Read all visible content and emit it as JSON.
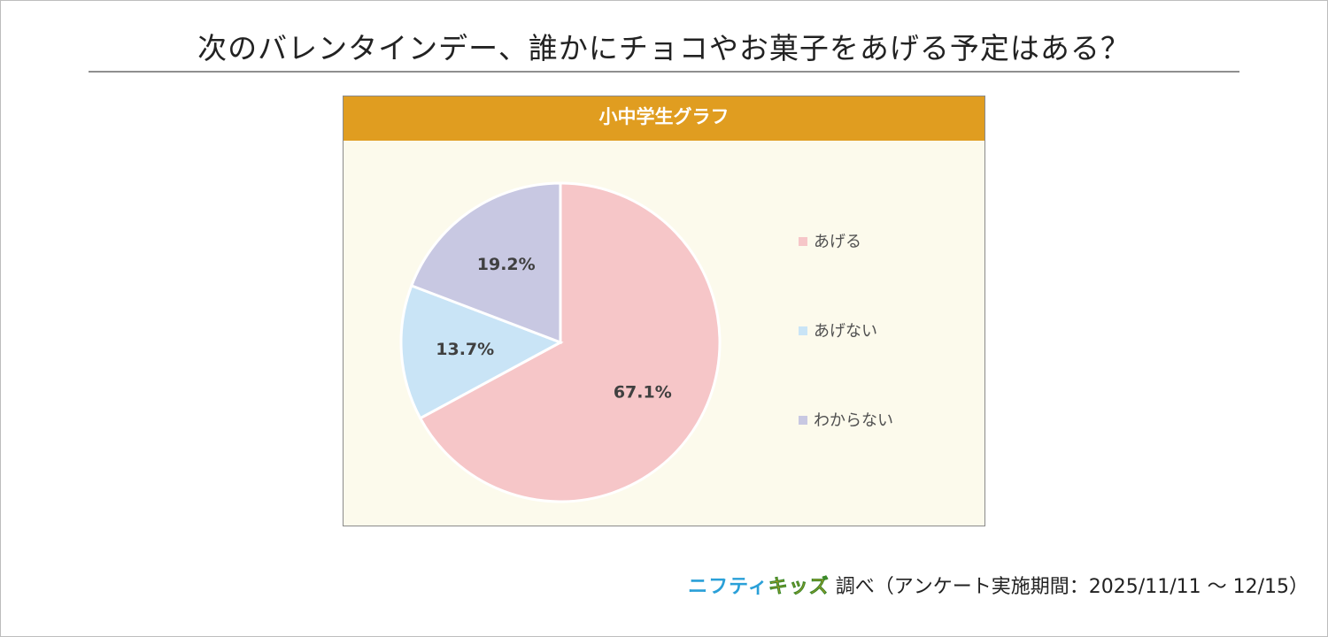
{
  "page": {
    "title": "次のバレンタインデー、誰かにチョコやお菓子をあげる予定はある？"
  },
  "panel": {
    "header": "小中学生グラフ"
  },
  "colors": {
    "header_bg": "#e09d20",
    "panel_bg": "#fcfaec",
    "brand_blue": "#2aa0d8",
    "brand_orange": "#f0a020"
  },
  "chart_data": {
    "type": "pie",
    "title": "小中学生グラフ",
    "legend_position": "right",
    "series": [
      {
        "name": "あげる",
        "value": 67.1,
        "label": "67.1%",
        "color": "#f6c6c8"
      },
      {
        "name": "あげない",
        "value": 13.7,
        "label": "13.7%",
        "color": "#c9e4f6"
      },
      {
        "name": "わからない",
        "value": 19.2,
        "label": "19.2%",
        "color": "#c8c8e2"
      }
    ]
  },
  "footer": {
    "brand_part1": "ニフティ",
    "brand_part2": "キッズ",
    "text": "調べ（アンケート実施期間：2025/11/11 ～ 12/15）"
  }
}
